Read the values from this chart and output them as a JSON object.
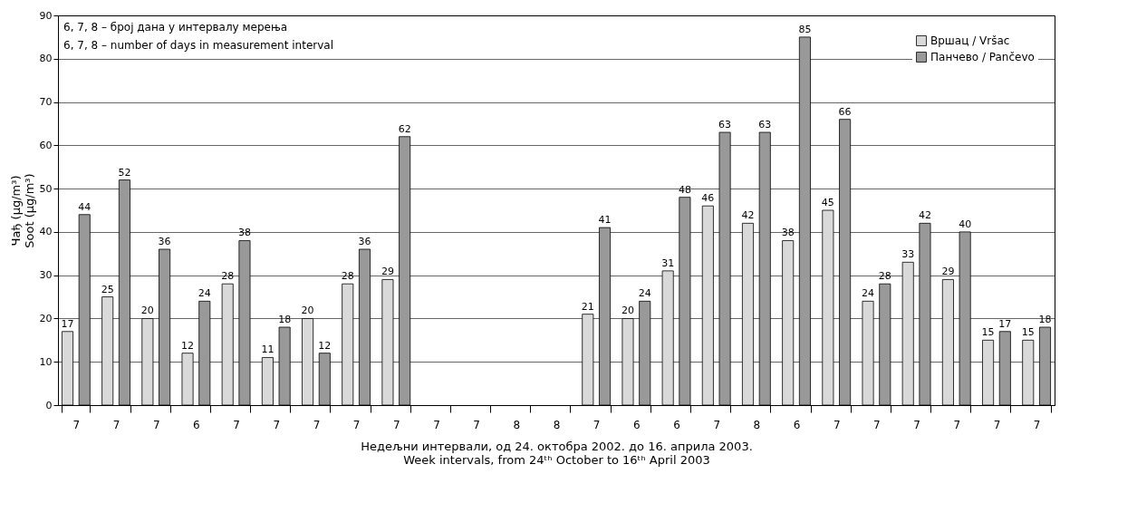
{
  "chart_data": {
    "type": "bar",
    "categories": [
      "7",
      "7",
      "7",
      "6",
      "7",
      "7",
      "7",
      "7",
      "7",
      "7",
      "7",
      "8",
      "8",
      "7",
      "6",
      "6",
      "7",
      "8",
      "6",
      "7",
      "7",
      "7",
      "7",
      "7",
      "7"
    ],
    "series": [
      {
        "name": "Вршац / Vršac",
        "color": "#d9d9d9",
        "values": [
          17,
          25,
          20,
          12,
          28,
          11,
          20,
          28,
          29,
          null,
          null,
          null,
          null,
          21,
          20,
          31,
          46,
          42,
          38,
          45,
          24,
          33,
          29,
          15,
          15
        ]
      },
      {
        "name": "Панчево / Pančevo",
        "color": "#999999",
        "values": [
          44,
          52,
          36,
          24,
          38,
          18,
          12,
          36,
          62,
          null,
          null,
          null,
          null,
          41,
          24,
          48,
          63,
          63,
          85,
          66,
          28,
          42,
          40,
          17,
          18
        ]
      }
    ],
    "ylim": [
      0,
      90
    ],
    "yticks": [
      0,
      10,
      20,
      30,
      40,
      50,
      60,
      70,
      80,
      90
    ],
    "grid": "y",
    "legend": "top right",
    "data_labels": true,
    "ylabel": "Чађ (μg/m³)\nSoot (μg/m³)",
    "xlabel": "Недељни интервали, од 24. октобра 2002. до 16. априла 2003.\nWeek intervals, from 24ᵗʰ October to 16ᵗʰ April 2003",
    "annotations": [
      "6, 7, 8 – број дана у интервалу мерења",
      "6, 7, 8 – number of days in measurement interval"
    ]
  }
}
